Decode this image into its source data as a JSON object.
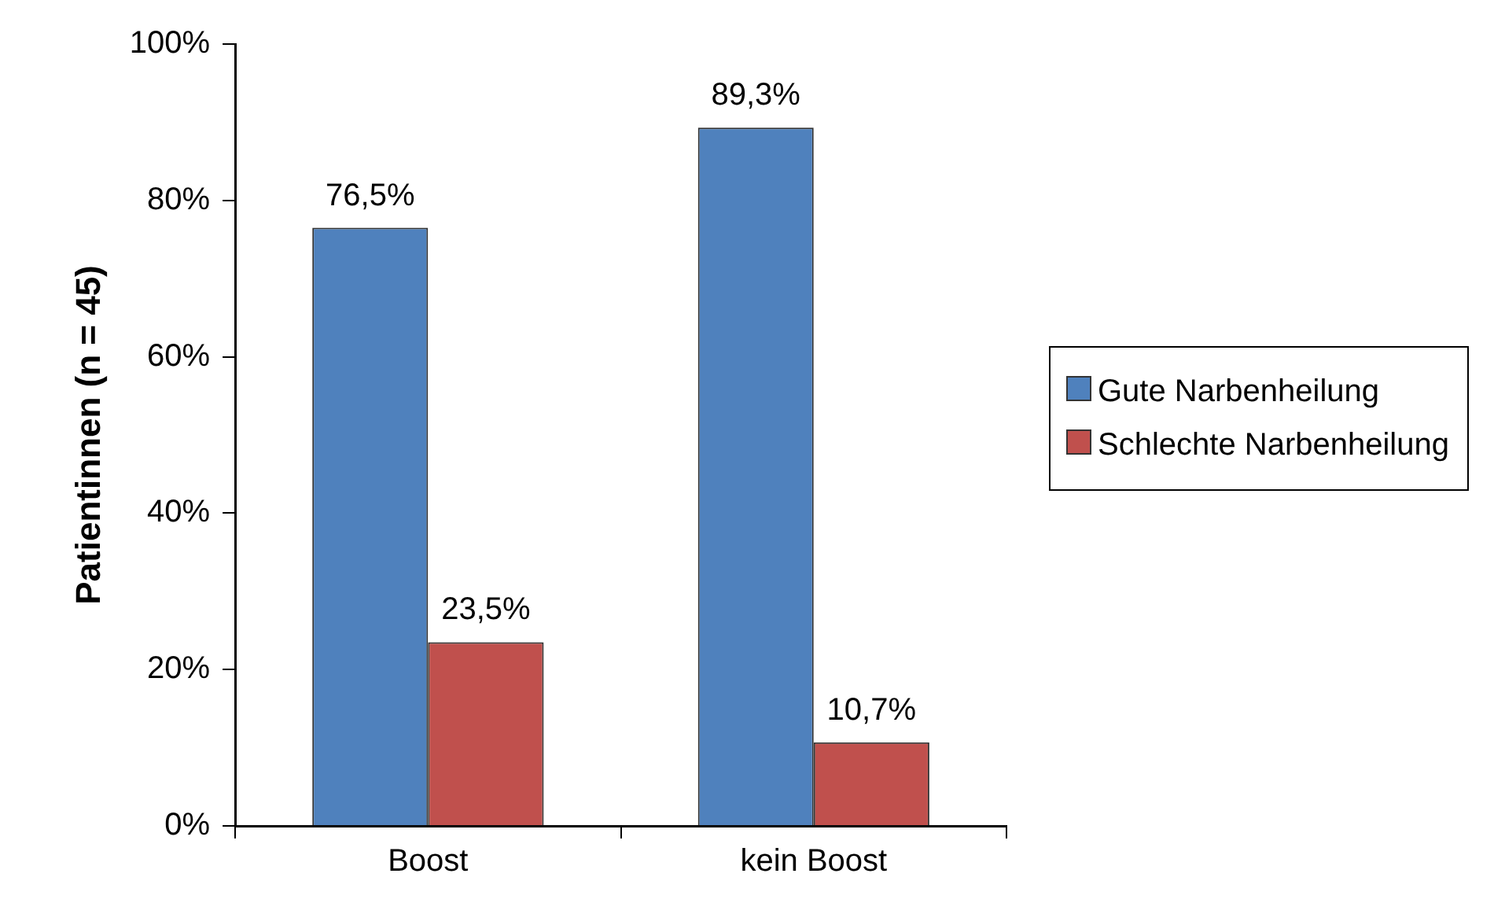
{
  "chart_data": {
    "type": "bar",
    "ylabel": "Patientinnen (n = 45)",
    "categories": [
      "Boost",
      "kein Boost"
    ],
    "series": [
      {
        "name": "Gute Narbenheilung",
        "color": "#4f81bd",
        "values": [
          76.5,
          89.3
        ],
        "value_labels": [
          "76,5%",
          "89,3%"
        ]
      },
      {
        "name": "Schlechte Narbenheilung",
        "color": "#c0504d",
        "values": [
          23.5,
          10.7
        ],
        "value_labels": [
          "23,5%",
          "10,7%"
        ]
      }
    ],
    "ylim": [
      0,
      100
    ],
    "yticks": [
      {
        "value": 0,
        "label": "0%"
      },
      {
        "value": 20,
        "label": "20%"
      },
      {
        "value": 40,
        "label": "40%"
      },
      {
        "value": 60,
        "label": "60%"
      },
      {
        "value": 80,
        "label": "80%"
      },
      {
        "value": 100,
        "label": "100%"
      }
    ],
    "grid": false,
    "legend": "right"
  }
}
